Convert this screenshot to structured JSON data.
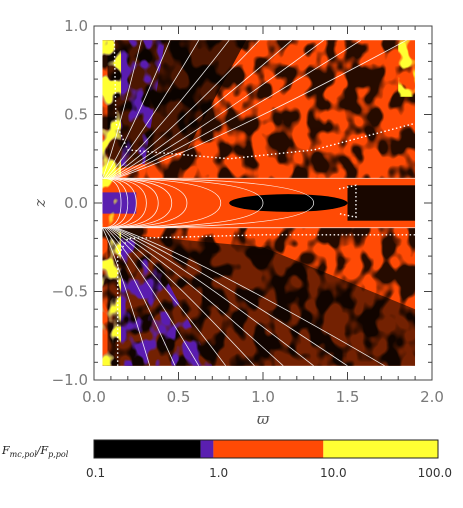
{
  "chart_data": {
    "type": "heatmap",
    "xlabel": "ϖ",
    "ylabel": "z",
    "xlim": [
      0.0,
      2.0
    ],
    "ylim": [
      -1.0,
      1.0
    ],
    "x_ticks": [
      "0.0",
      "0.5",
      "1.0",
      "1.5",
      "2.0"
    ],
    "y_ticks": [
      "−1.0",
      "−0.5",
      "0.0",
      "0.5",
      "1.0"
    ],
    "data_extent": {
      "x": [
        0.05,
        1.9
      ],
      "z": [
        -0.92,
        0.92
      ]
    },
    "colorbar": {
      "title": "F_mc,pol / F_p,pol",
      "scale": "log",
      "ticks": [
        "0.1",
        "1.0",
        "10.0",
        "100.0"
      ],
      "levels": [
        {
          "from": 0.1,
          "to": 0.85,
          "color": "#000000"
        },
        {
          "from": 0.85,
          "to": 1.1,
          "color": "#5a1fb0"
        },
        {
          "from": 1.1,
          "to": 10.0,
          "color": "#ff4a05"
        },
        {
          "from": 10.0,
          "to": 100.0,
          "color": "#ffff33"
        }
      ]
    },
    "disk": {
      "z_half_thickness": 0.14
    },
    "field_lines_upper_x_at_top": [
      0.28,
      0.45,
      0.62,
      0.8,
      0.98,
      1.17,
      1.36,
      1.58,
      1.85
    ],
    "field_lines_lower_x_at_bottom": [
      0.33,
      0.48,
      0.62,
      0.78,
      0.95,
      1.12,
      1.3,
      1.5,
      1.72
    ],
    "disk_region_arcs_x": [
      0.16,
      0.2,
      0.25,
      0.31,
      0.38,
      0.46,
      0.55,
      0.75,
      1.0,
      1.3
    ],
    "contour_unity": {
      "upper": [
        [
          0.12,
          0.92
        ],
        [
          0.13,
          0.45
        ],
        [
          0.2,
          0.3
        ],
        [
          0.8,
          0.25
        ],
        [
          1.3,
          0.3
        ],
        [
          1.9,
          0.45
        ]
      ],
      "lower": [
        [
          0.14,
          -0.92
        ],
        [
          0.14,
          -0.3
        ],
        [
          0.2,
          -0.2
        ],
        [
          1.0,
          -0.18
        ],
        [
          1.9,
          -0.18
        ]
      ]
    }
  }
}
